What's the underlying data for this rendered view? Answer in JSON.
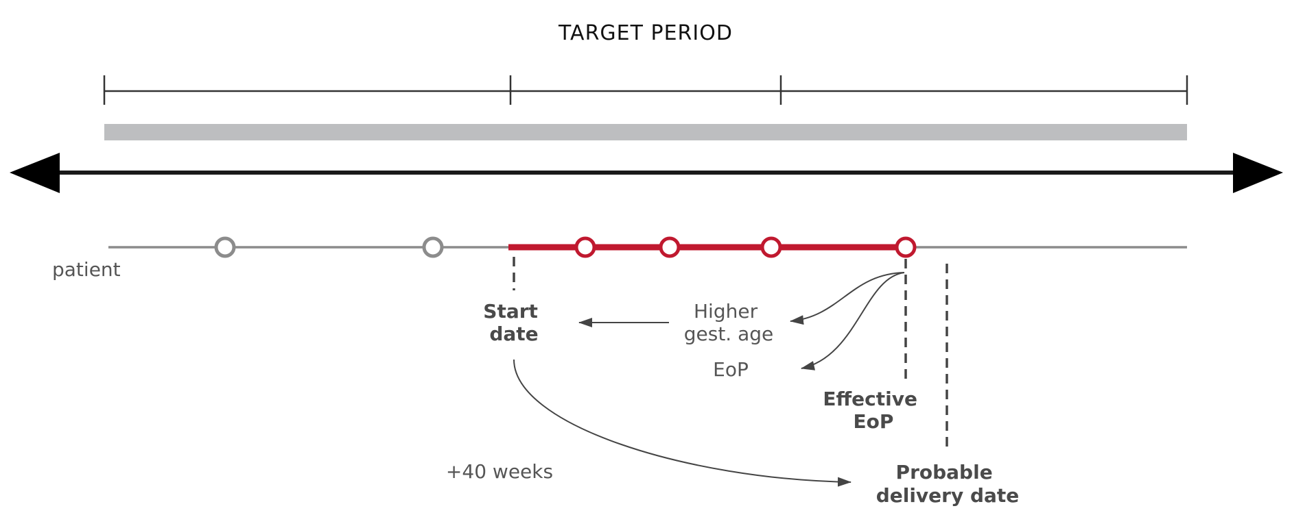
{
  "title": "TARGET PERIOD",
  "labels": {
    "patient": "patient",
    "start_date": [
      "Start",
      "date"
    ],
    "higher_gest_age": [
      "Higher",
      "gest. age"
    ],
    "eop": "EoP",
    "effective_eop": [
      "Effective",
      "EoP"
    ],
    "plus_40_weeks": "+40 weeks",
    "probable_delivery_date": [
      "Probable",
      "delivery date"
    ]
  },
  "colors": {
    "axis": "#1a1a1a",
    "target_band": "#bdbec0",
    "patient_line": "#8c8c8c",
    "highlight": "#c0192f",
    "marker_gray": "#8c8c8c",
    "text": "#4a4a4a"
  },
  "timeline": {
    "gray_markers": 2,
    "red_markers": 4
  }
}
